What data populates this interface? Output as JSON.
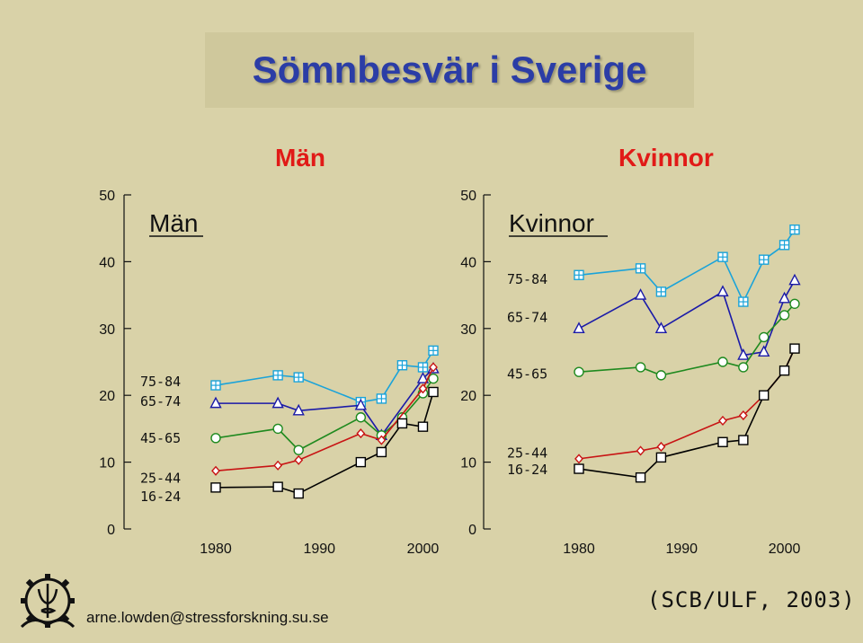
{
  "title": "Sömnbesvär i Sverige",
  "headings": {
    "men": "Män",
    "women": "Kvinnor"
  },
  "footer": {
    "email": "arne.lowden@stressforskning.su.se",
    "source": "(SCB/ULF, 2003)"
  },
  "colors": {
    "title": "#2b3da6",
    "heading": "#e11a17",
    "series_75_84": "#1aa3d9",
    "series_65_74": "#1a1aa8",
    "series_45_65": "#1f8a1f",
    "series_25_44": "#c81414",
    "series_16_24": "#000000"
  },
  "chart_data": [
    {
      "type": "line",
      "title": "Män",
      "ylim": [
        0,
        50
      ],
      "yticks": [
        "0",
        "10",
        "20",
        "30",
        "40",
        "50"
      ],
      "xticks": [
        "1980",
        "1990",
        "2000"
      ],
      "group_labels": [
        {
          "text": "75-84",
          "value": 22.2
        },
        {
          "text": "65-74",
          "value": 19.2
        },
        {
          "text": "45-65",
          "value": 13.7
        },
        {
          "text": "25-44",
          "value": 7.7
        },
        {
          "text": "16-24",
          "value": 5.0
        }
      ],
      "series": [
        {
          "name": "75-84",
          "marker": "square-plus",
          "x": [
            1980,
            1986,
            1988,
            1994,
            1996,
            1998,
            2000,
            2001
          ],
          "values": [
            21.5,
            23.0,
            22.7,
            19.0,
            19.5,
            24.5,
            24.2,
            26.7
          ]
        },
        {
          "name": "65-74",
          "marker": "triangle",
          "x": [
            1980,
            1986,
            1988,
            1994,
            1996,
            2000,
            2001
          ],
          "values": [
            18.8,
            18.8,
            17.7,
            18.5,
            14.0,
            22.5,
            24.0
          ]
        },
        {
          "name": "45-65",
          "marker": "circle",
          "x": [
            1980,
            1986,
            1988,
            1994,
            1996,
            1998,
            2000,
            2001
          ],
          "values": [
            13.6,
            15.0,
            11.8,
            16.7,
            14.0,
            16.7,
            20.3,
            22.5
          ]
        },
        {
          "name": "25-44",
          "marker": "diamond",
          "x": [
            1980,
            1986,
            1988,
            1994,
            1996,
            2000,
            2001
          ],
          "values": [
            8.7,
            9.5,
            10.3,
            14.3,
            13.3,
            21.0,
            24.2
          ]
        },
        {
          "name": "16-24",
          "marker": "square",
          "x": [
            1980,
            1986,
            1988,
            1994,
            1996,
            1998,
            2000,
            2001
          ],
          "values": [
            6.2,
            6.3,
            5.3,
            10.0,
            11.5,
            15.8,
            15.3,
            20.5
          ]
        }
      ]
    },
    {
      "type": "line",
      "title": "Kvinnor",
      "ylim": [
        0,
        50
      ],
      "yticks": [
        "0",
        "10",
        "20",
        "30",
        "40",
        "50"
      ],
      "xticks": [
        "1980",
        "1990",
        "2000"
      ],
      "group_labels": [
        {
          "text": "75-84",
          "value": 37.5
        },
        {
          "text": "65-74",
          "value": 31.8
        },
        {
          "text": "45-65",
          "value": 23.3
        },
        {
          "text": "25-44",
          "value": 11.5
        },
        {
          "text": "16-24",
          "value": 9.0
        }
      ],
      "series": [
        {
          "name": "75-84",
          "marker": "square-plus",
          "x": [
            1980,
            1986,
            1988,
            1994,
            1996,
            1998,
            2000,
            2001
          ],
          "values": [
            38.0,
            39.0,
            35.5,
            40.7,
            34.0,
            40.3,
            42.5,
            44.8
          ]
        },
        {
          "name": "65-74",
          "marker": "triangle",
          "x": [
            1980,
            1986,
            1988,
            1994,
            1996,
            1998,
            2000,
            2001
          ],
          "values": [
            30.0,
            35.0,
            30.0,
            35.5,
            26.0,
            26.5,
            34.5,
            37.2
          ]
        },
        {
          "name": "45-65",
          "marker": "circle",
          "x": [
            1980,
            1986,
            1988,
            1994,
            1996,
            1998,
            2000,
            2001
          ],
          "values": [
            23.5,
            24.2,
            23.0,
            25.0,
            24.2,
            28.7,
            32.0,
            33.7
          ]
        },
        {
          "name": "25-44",
          "marker": "diamond",
          "x": [
            1980,
            1986,
            1988,
            1994,
            1996,
            1998,
            2000,
            2001
          ],
          "values": [
            10.5,
            11.7,
            12.3,
            16.2,
            17.0,
            20.0,
            23.7,
            27.0
          ]
        },
        {
          "name": "16-24",
          "marker": "square",
          "x": [
            1980,
            1986,
            1988,
            1994,
            1996,
            1998,
            2000,
            2001
          ],
          "values": [
            9.0,
            7.7,
            10.7,
            13.0,
            13.3,
            20.0,
            23.7,
            27.0
          ]
        }
      ]
    }
  ]
}
